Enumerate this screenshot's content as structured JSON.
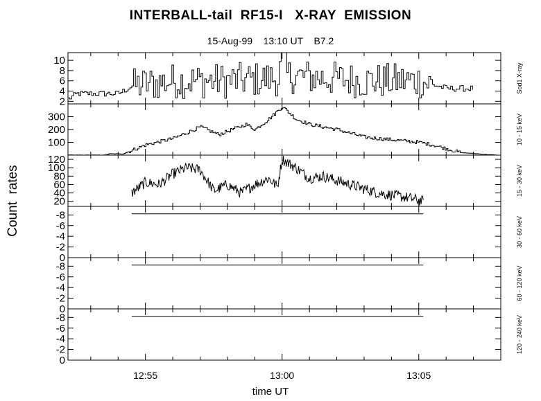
{
  "title": "INTERBALL-tail  RF15-I   X-RAY  EMISSION",
  "subtitle": "15-Aug-99    13:10 UT    B7.2",
  "xlabel": "time UT",
  "ylabel": "Count  rates",
  "chart_data": {
    "type": "line",
    "title": "INTERBALL-tail  RF15-I   X-RAY  EMISSION",
    "subtitle": "15-Aug-99    13:10 UT    B7.2",
    "xlabel": "time UT",
    "ylabel": "Count  rates",
    "x_time_range": [
      "12:52:10",
      "13:08:00"
    ],
    "x_ticks": [
      "12:55",
      "13:00",
      "13:05"
    ],
    "grid": false,
    "panels": [
      {
        "name": "Sod1 X-ray",
        "ylim": [
          1.5,
          11.5
        ],
        "yticks": [
          "2",
          "4",
          "6",
          "8",
          "10"
        ],
        "style": "step",
        "key_points": [
          [
            "12:52:10",
            2.5
          ],
          [
            "12:52:30",
            3.5
          ],
          [
            "12:54:00",
            3.5
          ],
          [
            "12:54:30",
            5
          ],
          [
            "12:56:00",
            6
          ],
          [
            "12:58:00",
            6
          ],
          [
            "12:59:50",
            6.5
          ],
          [
            "13:00:00",
            11
          ],
          [
            "13:00:10",
            7
          ],
          [
            "13:03:00",
            6
          ],
          [
            "13:05:00",
            6
          ],
          [
            "13:06:00",
            4.5
          ],
          [
            "13:07:00",
            4.5
          ]
        ]
      },
      {
        "name": "10 - 15 keV",
        "ylim": [
          0,
          400
        ],
        "yticks": [
          "100",
          "200",
          "300"
        ],
        "style": "step",
        "key_points": [
          [
            "12:52:10",
            0
          ],
          [
            "12:53:30",
            0
          ],
          [
            "12:53:40",
            10
          ],
          [
            "12:54:10",
            10
          ],
          [
            "12:55:00",
            80
          ],
          [
            "12:56:00",
            130
          ],
          [
            "12:57:00",
            220
          ],
          [
            "12:57:40",
            160
          ],
          [
            "12:58:40",
            240
          ],
          [
            "12:59:00",
            200
          ],
          [
            "12:59:30",
            280
          ],
          [
            "13:00:00",
            380
          ],
          [
            "13:00:30",
            280
          ],
          [
            "13:01:00",
            240
          ],
          [
            "13:02:00",
            200
          ],
          [
            "13:03:00",
            140
          ],
          [
            "13:04:00",
            120
          ],
          [
            "13:05:00",
            100
          ],
          [
            "13:05:30",
            80
          ],
          [
            "13:06:30",
            20
          ],
          [
            "13:07:50",
            0
          ]
        ]
      },
      {
        "name": "15 - 30 keV",
        "ylim": [
          8,
          130
        ],
        "yticks": [
          "20",
          "40",
          "60",
          "80",
          "100",
          "120"
        ],
        "style": "line",
        "key_points": [
          [
            "12:54:30",
            40
          ],
          [
            "12:55:00",
            65
          ],
          [
            "12:55:30",
            60
          ],
          [
            "12:56:00",
            85
          ],
          [
            "12:56:30",
            100
          ],
          [
            "12:57:00",
            95
          ],
          [
            "12:57:30",
            45
          ],
          [
            "12:58:00",
            60
          ],
          [
            "12:58:30",
            40
          ],
          [
            "12:59:00",
            60
          ],
          [
            "12:59:30",
            75
          ],
          [
            "12:59:50",
            55
          ],
          [
            "13:00:00",
            120
          ],
          [
            "13:00:30",
            100
          ],
          [
            "13:01:00",
            75
          ],
          [
            "13:01:30",
            80
          ],
          [
            "13:02:00",
            70
          ],
          [
            "13:02:30",
            60
          ],
          [
            "13:03:30",
            40
          ],
          [
            "13:04:30",
            30
          ],
          [
            "13:05:10",
            20
          ]
        ]
      },
      {
        "name": "30 - 60 keV",
        "ylim": [
          0,
          9.6
        ],
        "yticks": [
          "0",
          "-2",
          "-4",
          "-6",
          "-8"
        ],
        "style": "flat",
        "key_points": [
          [
            "12:54:30",
            8.2
          ],
          [
            "13:05:10",
            8.2
          ]
        ]
      },
      {
        "name": "60 - 120 keV",
        "ylim": [
          0,
          9.6
        ],
        "yticks": [
          "0",
          "-2",
          "-4",
          "-6",
          "-8"
        ],
        "style": "flat",
        "key_points": [
          [
            "12:54:30",
            8.2
          ],
          [
            "13:05:10",
            8.2
          ]
        ]
      },
      {
        "name": "120 - 240 keV",
        "ylim": [
          0,
          9.6
        ],
        "yticks": [
          "0",
          "-2",
          "-4",
          "-6",
          "-8"
        ],
        "style": "flat",
        "key_points": [
          [
            "12:54:30",
            8.2
          ],
          [
            "13:05:10",
            8.2
          ]
        ]
      }
    ]
  }
}
